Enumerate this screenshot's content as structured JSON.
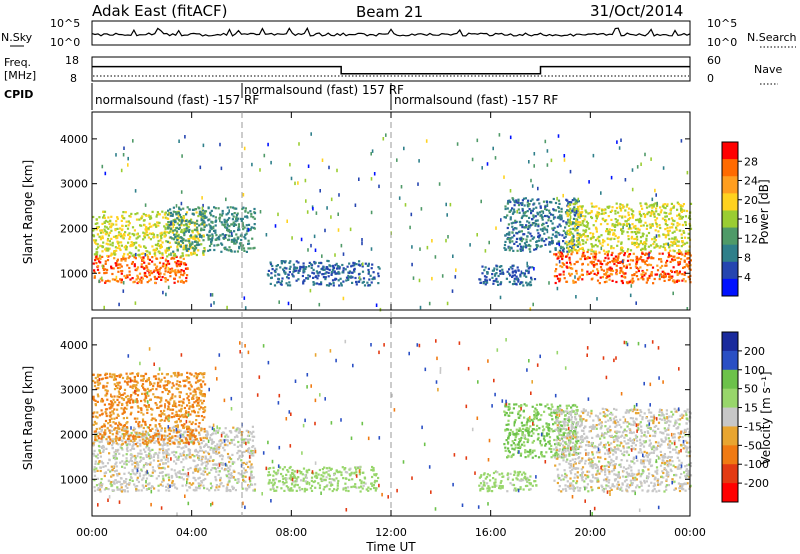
{
  "header": {
    "station": "Adak East (fitACF)",
    "beam": "Beam 21",
    "date": "31/Oct/2014"
  },
  "noise_panel": {
    "left_label": "N.Sky",
    "right_label": "N.Search",
    "left_ticks": [
      "10^5",
      "10^0"
    ],
    "right_ticks": [
      "10^5",
      "10^0"
    ]
  },
  "freq_panel": {
    "left_label_1": "Freq.",
    "left_label_2": "[MHz]",
    "left_ticks": [
      "18",
      "8"
    ],
    "right_label": "Nave",
    "right_ticks": [
      "60",
      "0"
    ],
    "cpid_label": "CPID",
    "cpid_segments": [
      {
        "text": "normalsound (fast) -157 RF",
        "start_h": 0,
        "end_h": 6
      },
      {
        "text": "normalsound (fast) 157 RF",
        "start_h": 6,
        "end_h": 12
      },
      {
        "text": "normalsound (fast) -157 RF",
        "start_h": 12,
        "end_h": 24
      }
    ]
  },
  "power_panel": {
    "ylabel": "Slant Range [km]",
    "cbar_label": "Power [dB]",
    "cbar_ticks": [
      "28",
      "24",
      "20",
      "16",
      "12",
      "8",
      "4"
    ]
  },
  "velocity_panel": {
    "ylabel": "Slant Range [km]",
    "cbar_label": "Velocity [m s⁻¹]",
    "cbar_ticks": [
      "200",
      "100",
      "50",
      "15",
      "-15",
      "-50",
      "-100",
      "-200"
    ]
  },
  "x_axis": {
    "label": "Time UT",
    "tick_labels": [
      "00:00",
      "04:00",
      "08:00",
      "12:00",
      "16:00",
      "20:00",
      "00:00"
    ]
  },
  "colors": {
    "power_scale": [
      "#ff0000",
      "#ff6a00",
      "#ff9e1f",
      "#ffd21f",
      "#9acd32",
      "#4f9a68",
      "#2f7f8a",
      "#2545b0",
      "#0011ff"
    ],
    "velocity_scale": [
      "#1a2a9c",
      "#2a4fc4",
      "#6cc24a",
      "#98d66b",
      "#c7c7c7",
      "#e8a530",
      "#f07a12",
      "#e33a12",
      "#ff0000"
    ]
  },
  "chart_data": {
    "type": "heatmap",
    "title": "Adak East (fitACF)",
    "subtitle": "Beam 21",
    "date": "31/Oct/2014",
    "xlabel": "Time UT",
    "ylabel": "Slant Range [km]",
    "xlim_hours": [
      0,
      24
    ],
    "ylim_km": [
      180,
      4600
    ],
    "y_ticks": [
      1000,
      2000,
      3000,
      4000
    ],
    "x_ticks_hours": [
      0,
      4,
      8,
      12,
      16,
      20,
      24
    ],
    "frequency_mhz_segments": [
      {
        "start_h": 0,
        "end_h": 10,
        "value": 14
      },
      {
        "start_h": 10,
        "end_h": 18,
        "value": 11
      },
      {
        "start_h": 18,
        "end_h": 24,
        "value": 14
      }
    ],
    "nave_approx": 8,
    "noise_sky_level": 1000,
    "power_colorbar_range_db": [
      0,
      32
    ],
    "velocity_colorbar_range_ms": [
      -250,
      250
    ],
    "power_echo_regions": [
      {
        "start_h": 0.0,
        "end_h": 3.8,
        "range_km": [
          800,
          1400
        ],
        "power_db": 28
      },
      {
        "start_h": 0.0,
        "end_h": 4.5,
        "range_km": [
          1400,
          2400
        ],
        "power_db": 18
      },
      {
        "start_h": 3.0,
        "end_h": 6.5,
        "range_km": [
          1500,
          2500
        ],
        "power_db": 10
      },
      {
        "start_h": 7.0,
        "end_h": 11.5,
        "range_km": [
          750,
          1300
        ],
        "power_db": 6
      },
      {
        "start_h": 15.5,
        "end_h": 17.8,
        "range_km": [
          750,
          1200
        ],
        "power_db": 6
      },
      {
        "start_h": 16.5,
        "end_h": 19.5,
        "range_km": [
          1500,
          2700
        ],
        "power_db": 8
      },
      {
        "start_h": 18.5,
        "end_h": 24.0,
        "range_km": [
          800,
          1500
        ],
        "power_db": 28
      },
      {
        "start_h": 19.0,
        "end_h": 24.0,
        "range_km": [
          1500,
          2600
        ],
        "power_db": 18
      }
    ],
    "velocity_echo_regions": [
      {
        "start_h": 0.0,
        "end_h": 6.5,
        "range_km": [
          750,
          2200
        ],
        "velocity_ms": 0
      },
      {
        "start_h": 0.0,
        "end_h": 4.5,
        "range_km": [
          1800,
          3400
        ],
        "velocity_ms": -50
      },
      {
        "start_h": 7.0,
        "end_h": 11.5,
        "range_km": [
          750,
          1300
        ],
        "velocity_ms": 30
      },
      {
        "start_h": 15.5,
        "end_h": 17.8,
        "range_km": [
          750,
          1200
        ],
        "velocity_ms": 30
      },
      {
        "start_h": 16.5,
        "end_h": 19.5,
        "range_km": [
          1500,
          2700
        ],
        "velocity_ms": 50
      },
      {
        "start_h": 18.5,
        "end_h": 24.0,
        "range_km": [
          750,
          2600
        ],
        "velocity_ms": 0
      }
    ]
  }
}
